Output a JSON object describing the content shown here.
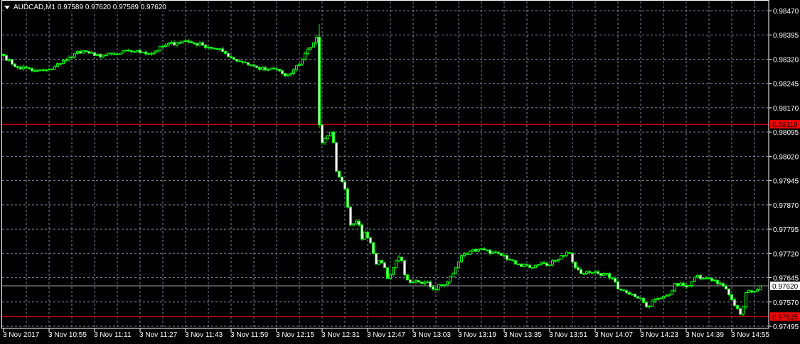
{
  "header": {
    "symbol": "AUDCAD,M1",
    "ohlc": "0.97589 0.97620 0.97589 0.97620",
    "menu_icon": "triangle-down-icon"
  },
  "colors": {
    "background": "#000000",
    "grid": "#778899",
    "candle_up_outline": "#00ff00",
    "candle_down_fill": "#ffffff",
    "frame": "#ffffff",
    "line_red": "#ff0000",
    "line_grey": "#a0a0a0"
  },
  "chart_data": {
    "type": "candlestick",
    "title": "",
    "timeframe": "M1",
    "date": "3 Nov 2017",
    "grid": true,
    "y_range": [
      0.97495,
      0.9847
    ],
    "y_ticks": [
      "0.98470",
      "0.98395",
      "0.98320",
      "0.98245",
      "0.98170",
      "0.98095",
      "0.98020",
      "0.97945",
      "0.97870",
      "0.97795",
      "0.97720",
      "0.97645",
      "0.97570",
      "0.97495"
    ],
    "x_ticks": [
      "3 Nov 2017",
      "3 Nov 10:55",
      "3 Nov 11:11",
      "3 Nov 11:27",
      "3 Nov 11:43",
      "3 Nov 11:59",
      "3 Nov 12:15",
      "3 Nov 12:31",
      "3 Nov 12:47",
      "3 Nov 13:03",
      "3 Nov 13:19",
      "3 Nov 13:35",
      "3 Nov 13:51",
      "3 Nov 14:07",
      "3 Nov 14:23",
      "3 Nov 14:39",
      "3 Nov 14:55"
    ],
    "first_bar_time": "10:39",
    "horizontal_lines": [
      {
        "price": "0.98119",
        "color": "#ff0000",
        "label_bg": "#ff0000",
        "label_fg": "#000000"
      },
      {
        "price": "0.97620",
        "color": "#a0a0a0",
        "label_bg": "#ffffff",
        "label_fg": "#000000"
      },
      {
        "price": "0.97525",
        "color": "#ff0000",
        "label_bg": "#ff0000",
        "label_fg": "#000000"
      }
    ],
    "close_path": [
      [
        "10:39",
        0.98331
      ],
      [
        "10:42",
        0.98305
      ],
      [
        "10:44",
        0.98294
      ],
      [
        "10:47",
        0.98294
      ],
      [
        "10:50",
        0.98283
      ],
      [
        "10:53",
        0.98285
      ],
      [
        "10:56",
        0.98289
      ],
      [
        "11:00",
        0.98316
      ],
      [
        "11:03",
        0.98327
      ],
      [
        "11:05",
        0.98344
      ],
      [
        "11:08",
        0.98344
      ],
      [
        "11:11",
        0.98331
      ],
      [
        "11:15",
        0.98333
      ],
      [
        "11:19",
        0.98335
      ],
      [
        "11:23",
        0.98346
      ],
      [
        "11:28",
        0.98342
      ],
      [
        "11:31",
        0.98338
      ],
      [
        "11:36",
        0.98364
      ],
      [
        "11:40",
        0.98371
      ],
      [
        "11:43",
        0.98377
      ],
      [
        "11:45",
        0.98371
      ],
      [
        "11:49",
        0.98364
      ],
      [
        "11:53",
        0.98353
      ],
      [
        "11:56",
        0.98344
      ],
      [
        "12:00",
        0.9832
      ],
      [
        "12:04",
        0.98309
      ],
      [
        "12:08",
        0.98294
      ],
      [
        "12:11",
        0.98287
      ],
      [
        "12:15",
        0.98289
      ],
      [
        "12:18",
        0.98269
      ],
      [
        "12:20",
        0.98276
      ],
      [
        "12:23",
        0.98305
      ],
      [
        "12:25",
        0.98338
      ],
      [
        "12:28",
        0.98371
      ],
      [
        "12:29",
        0.98388
      ],
      [
        "12:30",
        0.98117
      ],
      [
        "12:31",
        0.98062
      ],
      [
        "12:33",
        0.98084
      ],
      [
        "12:34",
        0.98095
      ],
      [
        "12:35",
        0.98062
      ],
      [
        "12:36",
        0.97974
      ],
      [
        "12:38",
        0.97941
      ],
      [
        "12:39",
        0.97919
      ],
      [
        "12:40",
        0.97863
      ],
      [
        "12:41",
        0.97808
      ],
      [
        "12:43",
        0.97819
      ],
      [
        "12:44",
        0.97808
      ],
      [
        "12:45",
        0.97764
      ],
      [
        "12:46",
        0.97786
      ],
      [
        "12:48",
        0.97753
      ],
      [
        "12:49",
        0.9772
      ],
      [
        "12:50",
        0.97687
      ],
      [
        "12:51",
        0.97698
      ],
      [
        "12:53",
        0.97676
      ],
      [
        "12:54",
        0.97643
      ],
      [
        "12:55",
        0.97654
      ],
      [
        "12:56",
        0.97676
      ],
      [
        "12:58",
        0.97709
      ],
      [
        "12:59",
        0.97698
      ],
      [
        "13:00",
        0.97654
      ],
      [
        "13:01",
        0.97638
      ],
      [
        "13:03",
        0.97632
      ],
      [
        "13:05",
        0.97632
      ],
      [
        "13:08",
        0.97632
      ],
      [
        "13:10",
        0.9761
      ],
      [
        "13:13",
        0.97621
      ],
      [
        "13:15",
        0.97632
      ],
      [
        "13:18",
        0.97676
      ],
      [
        "13:20",
        0.97713
      ],
      [
        "13:23",
        0.97727
      ],
      [
        "13:25",
        0.97727
      ],
      [
        "13:28",
        0.97731
      ],
      [
        "13:30",
        0.9772
      ],
      [
        "13:33",
        0.9772
      ],
      [
        "13:35",
        0.97713
      ],
      [
        "13:38",
        0.97698
      ],
      [
        "13:40",
        0.97687
      ],
      [
        "13:43",
        0.97683
      ],
      [
        "13:45",
        0.97676
      ],
      [
        "13:48",
        0.97691
      ],
      [
        "13:50",
        0.97683
      ],
      [
        "13:53",
        0.97698
      ],
      [
        "13:55",
        0.97713
      ],
      [
        "13:58",
        0.9772
      ],
      [
        "14:00",
        0.97676
      ],
      [
        "14:03",
        0.97658
      ],
      [
        "14:05",
        0.9766
      ],
      [
        "14:08",
        0.97658
      ],
      [
        "14:10",
        0.97658
      ],
      [
        "14:13",
        0.97643
      ],
      [
        "14:15",
        0.9761
      ],
      [
        "14:18",
        0.97599
      ],
      [
        "14:20",
        0.97594
      ],
      [
        "14:23",
        0.97581
      ],
      [
        "14:25",
        0.97555
      ],
      [
        "14:28",
        0.97577
      ],
      [
        "14:30",
        0.97581
      ],
      [
        "14:33",
        0.97594
      ],
      [
        "14:35",
        0.97627
      ],
      [
        "14:38",
        0.97621
      ],
      [
        "14:40",
        0.97621
      ],
      [
        "14:43",
        0.97652
      ],
      [
        "14:45",
        0.97643
      ],
      [
        "14:48",
        0.97636
      ],
      [
        "14:50",
        0.97627
      ],
      [
        "14:53",
        0.9761
      ],
      [
        "14:55",
        0.97577
      ],
      [
        "14:58",
        0.97532
      ],
      [
        "14:59",
        0.97555
      ],
      [
        "15:00",
        0.97599
      ],
      [
        "15:03",
        0.97603
      ],
      [
        "15:05",
        0.9762
      ]
    ]
  }
}
